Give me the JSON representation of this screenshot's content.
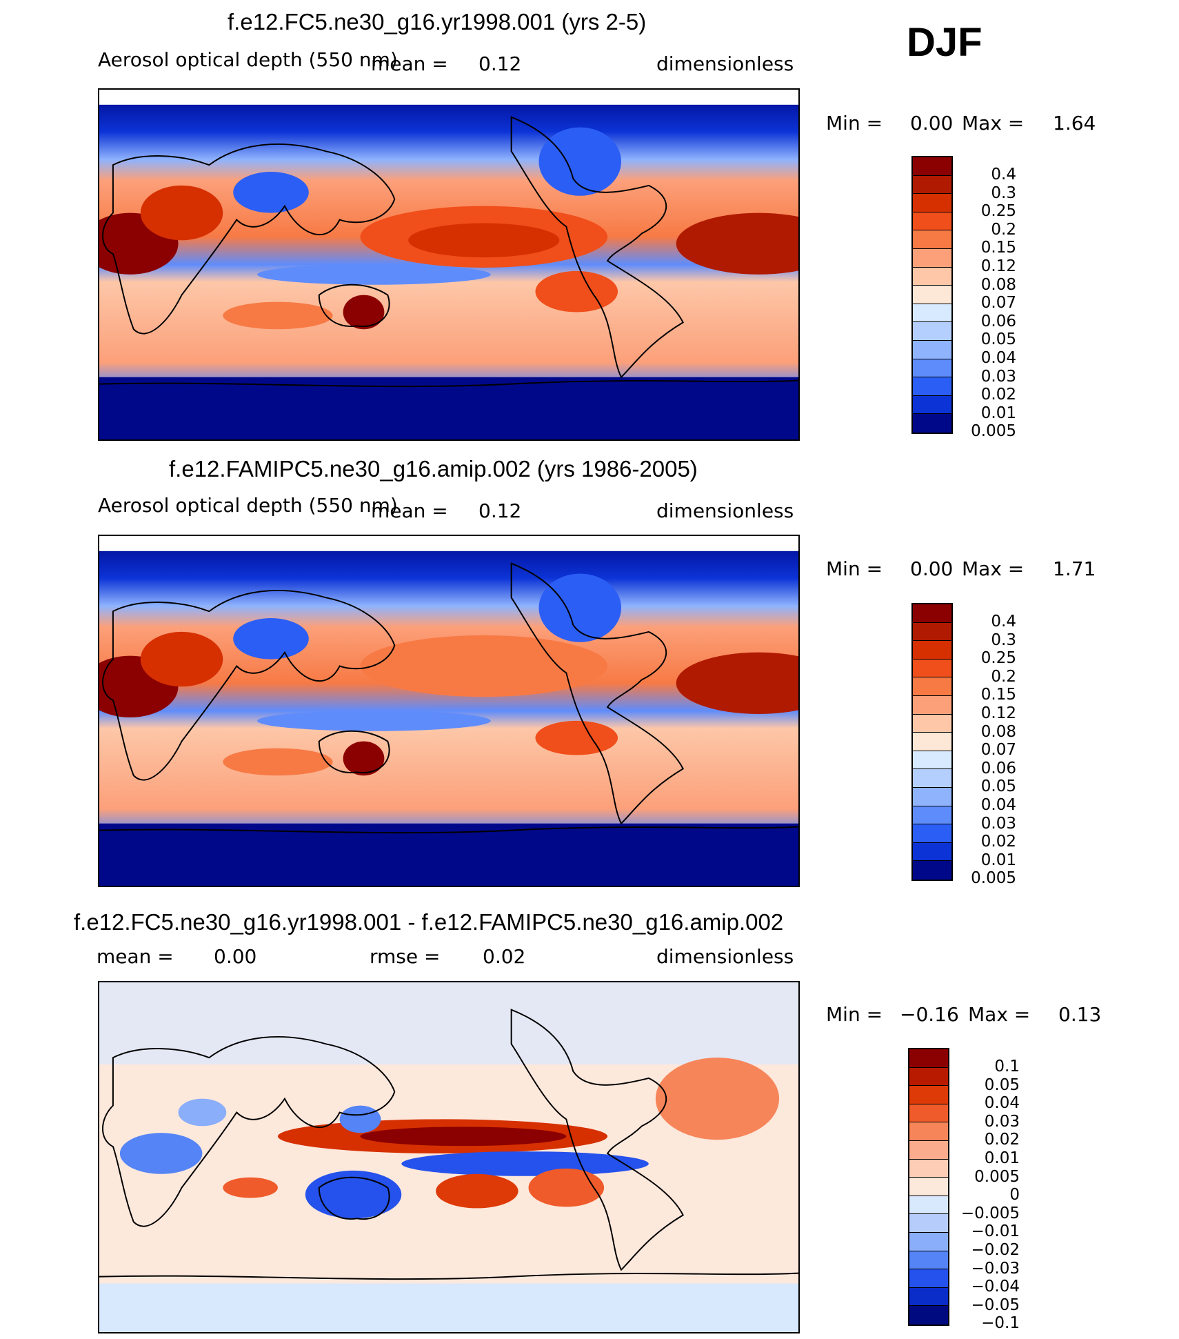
{
  "season": "DJF",
  "panels": [
    {
      "title": "f.e12.FC5.ne30_g16.yr1998.001 (yrs 2-5)",
      "variable": "Aerosol optical depth (550 nm)",
      "mean_label": "mean =",
      "mean_value": "0.12",
      "units": "dimensionless",
      "min_label": "Min =",
      "min_value": "0.00",
      "max_label": "Max =",
      "max_value": "1.64",
      "colorbar_levels": [
        "0.4",
        "0.3",
        "0.25",
        "0.2",
        "0.15",
        "0.12",
        "0.08",
        "0.07",
        "0.06",
        "0.05",
        "0.04",
        "0.03",
        "0.02",
        "0.01",
        "0.005"
      ],
      "colorbar_colors": [
        "#8b0000",
        "#b01a00",
        "#d63000",
        "#f04e1a",
        "#f77a45",
        "#fca07a",
        "#fdc7a8",
        "#fde8d8",
        "#d8eaff",
        "#b4cffe",
        "#8fb3fd",
        "#5f8cfb",
        "#2b5ef5",
        "#0c33d6",
        "#00088a"
      ]
    },
    {
      "title": "f.e12.FAMIPC5.ne30_g16.amip.002 (yrs 1986-2005)",
      "variable": "Aerosol optical depth (550 nm)",
      "mean_label": "mean =",
      "mean_value": "0.12",
      "units": "dimensionless",
      "min_label": "Min =",
      "min_value": "0.00",
      "max_label": "Max =",
      "max_value": "1.71",
      "colorbar_levels": [
        "0.4",
        "0.3",
        "0.25",
        "0.2",
        "0.15",
        "0.12",
        "0.08",
        "0.07",
        "0.06",
        "0.05",
        "0.04",
        "0.03",
        "0.02",
        "0.01",
        "0.005"
      ],
      "colorbar_colors": [
        "#8b0000",
        "#b01a00",
        "#d63000",
        "#f04e1a",
        "#f77a45",
        "#fca07a",
        "#fdc7a8",
        "#fde8d8",
        "#d8eaff",
        "#b4cffe",
        "#8fb3fd",
        "#5f8cfb",
        "#2b5ef5",
        "#0c33d6",
        "#00088a"
      ]
    },
    {
      "title": "f.e12.FC5.ne30_g16.yr1998.001 - f.e12.FAMIPC5.ne30_g16.amip.002",
      "mean_label": "mean =",
      "mean_value": "0.00",
      "rmse_label": "rmse =",
      "rmse_value": "0.02",
      "units": "dimensionless",
      "min_label": "Min =",
      "min_value": "−0.16",
      "max_label": "Max =",
      "max_value": "0.13",
      "colorbar_levels": [
        "0.1",
        "0.05",
        "0.04",
        "0.03",
        "0.02",
        "0.01",
        "0.005",
        "0",
        "−0.005",
        "−0.01",
        "−0.02",
        "−0.03",
        "−0.04",
        "−0.05",
        "−0.1"
      ],
      "colorbar_colors": [
        "#8b0000",
        "#b81a00",
        "#dd3a08",
        "#ef5b2a",
        "#f7855a",
        "#fbac8c",
        "#fdcdb6",
        "#fde8dc",
        "#d8e8fd",
        "#b6cdfc",
        "#8aaefa",
        "#5484f5",
        "#2552ec",
        "#0a2cc9",
        "#000a80"
      ]
    }
  ]
}
